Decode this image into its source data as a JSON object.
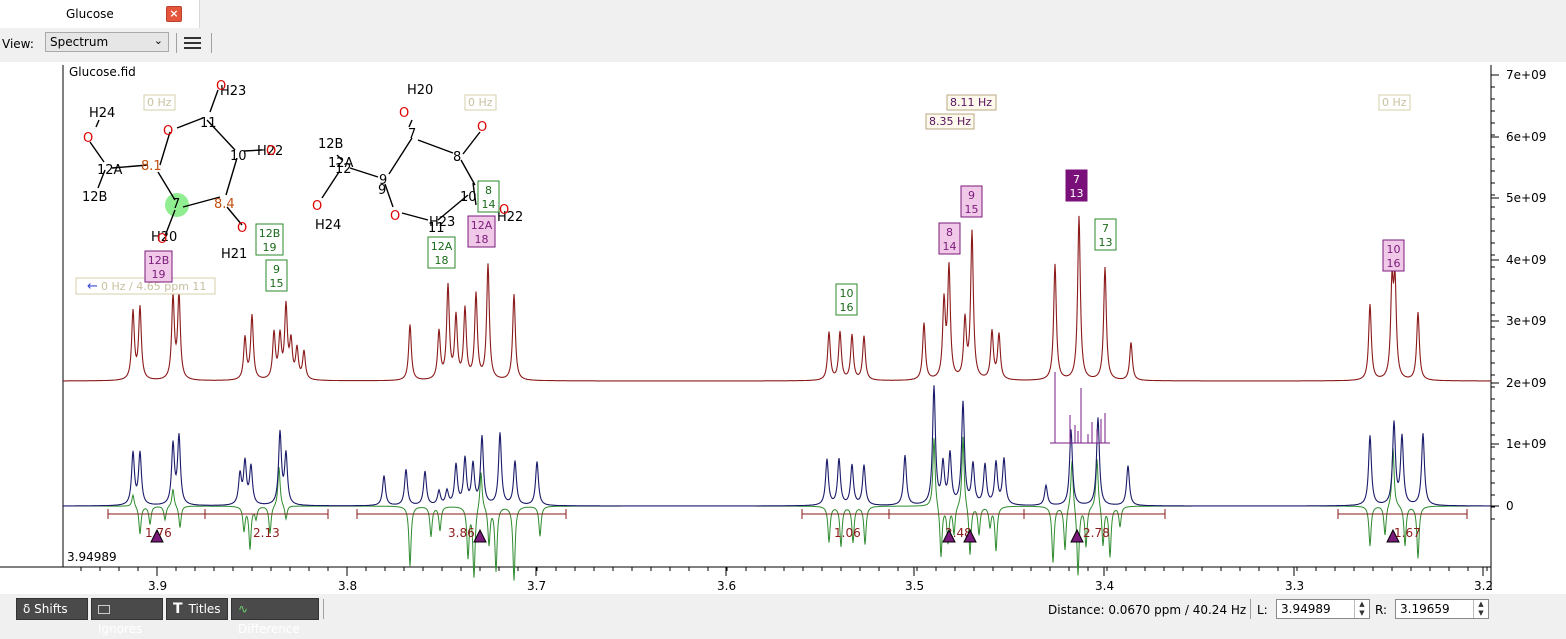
{
  "tab": {
    "label": "Glucose"
  },
  "view": {
    "label": "View:",
    "selected": "Spectrum"
  },
  "plot": {
    "file_label": "Glucose.fid",
    "cursor_readout": "3.94989",
    "coupling_label": "0 Hz / 4.65 ppm 11",
    "x_ticks": [
      "3.9",
      "3.8",
      "3.7",
      "3.6",
      "3.5",
      "3.4",
      "3.3",
      "3.2"
    ],
    "y_ticks": [
      "7e+09",
      "6e+09",
      "5e+09",
      "4e+09",
      "3e+09",
      "2e+09",
      "1e+09",
      "0"
    ],
    "hz_tags": [
      "0 Hz",
      "0 Hz",
      "8.11 Hz",
      "8.35 Hz",
      "0 Hz"
    ],
    "integrals": [
      "1.76",
      "2.13",
      "3.86",
      "1.06",
      "2.48",
      "2.78",
      "1.67"
    ]
  },
  "structure1": {
    "labels": [
      "H24",
      "O",
      "12A",
      "12B",
      "O",
      "11",
      "H23",
      "O",
      "8.1",
      "10",
      "H22",
      "O",
      "7",
      "8.4",
      "H20",
      "O",
      "O",
      "H21"
    ]
  },
  "structure2": {
    "labels": [
      "H20",
      "O",
      "7",
      "O",
      "12B",
      "12A",
      "12",
      "8",
      "9",
      "9",
      "O",
      "H24",
      "O",
      "H23",
      "11",
      "10",
      "H22",
      "O"
    ]
  },
  "peak_tags": [
    {
      "t": "12B",
      "b": "19"
    },
    {
      "t": "12B",
      "b": "19"
    },
    {
      "t": "9",
      "b": "15"
    },
    {
      "t": "8",
      "b": "14"
    },
    {
      "t": "12A",
      "b": "18"
    },
    {
      "t": "12A",
      "b": "18"
    },
    {
      "t": "10",
      "b": "16"
    },
    {
      "t": "8",
      "b": "14"
    },
    {
      "t": "9",
      "b": "15"
    },
    {
      "t": "7",
      "b": "13"
    },
    {
      "t": "7",
      "b": "13"
    },
    {
      "t": "10",
      "b": "16"
    }
  ],
  "bottom": {
    "shifts": "δ Shifts",
    "ignores": "Ignores",
    "titles": "Titles",
    "difference": "Difference",
    "distance": "Distance:  0.0670 ppm / 40.24 Hz",
    "l_label": "L:",
    "l_value": "3.94989",
    "r_label": "R:",
    "r_value": "3.19659"
  }
}
